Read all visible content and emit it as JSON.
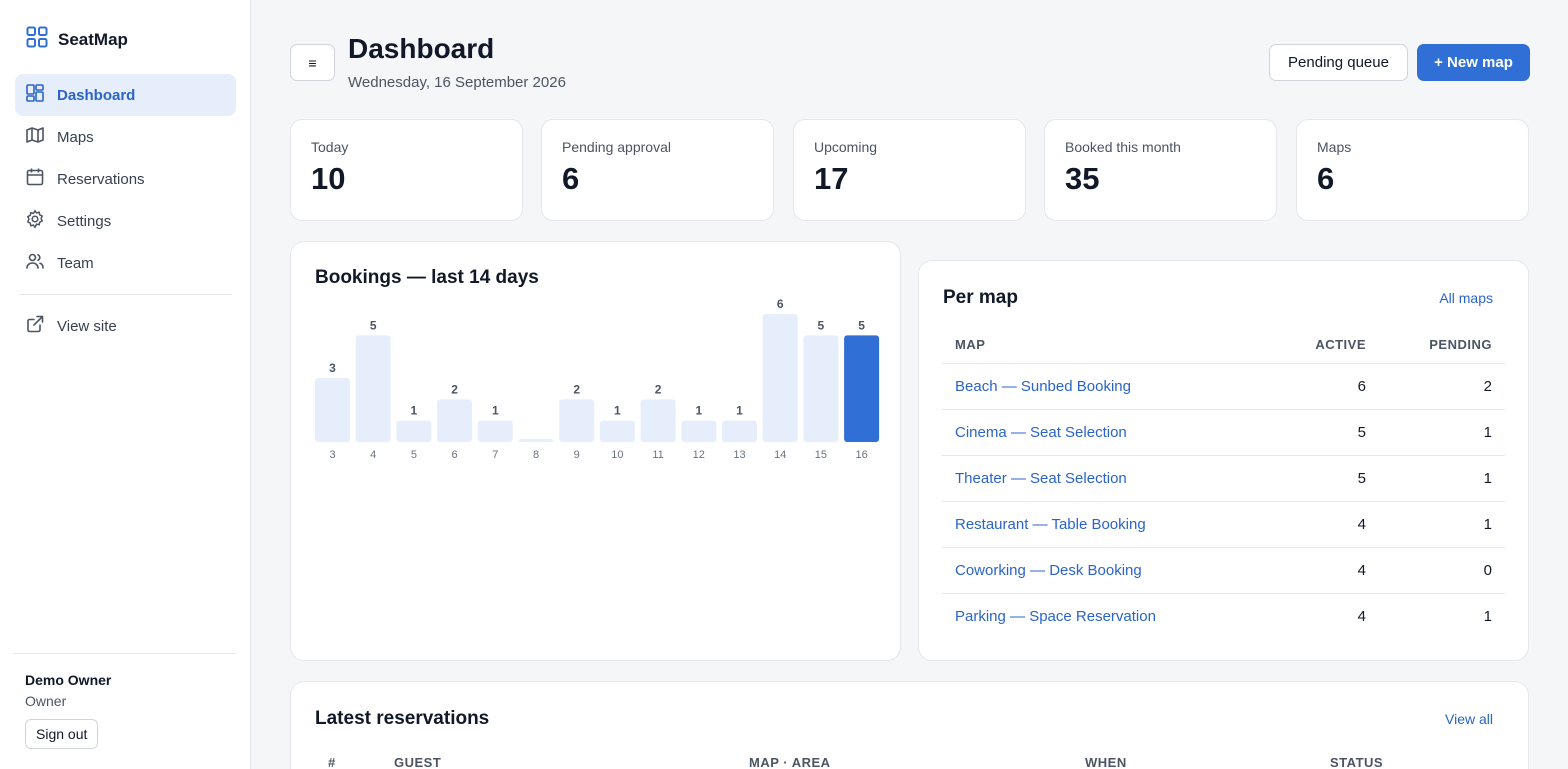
{
  "brand": {
    "name": "SeatMap"
  },
  "sidebar": {
    "items": [
      {
        "label": "Dashboard",
        "icon": "dashboard-icon",
        "active": true
      },
      {
        "label": "Maps",
        "icon": "map-icon",
        "active": false
      },
      {
        "label": "Reservations",
        "icon": "calendar-icon",
        "active": false
      },
      {
        "label": "Settings",
        "icon": "gear-icon",
        "active": false
      },
      {
        "label": "Team",
        "icon": "users-icon",
        "active": false
      }
    ],
    "view_site": "View site",
    "user": {
      "name": "Demo Owner",
      "role": "Owner",
      "sign_out": "Sign out"
    }
  },
  "header": {
    "menu_glyph": "≡",
    "title": "Dashboard",
    "date": "Wednesday, 16 September 2026",
    "pending_queue": "Pending queue",
    "new_map": "+ New map"
  },
  "stats": [
    {
      "label": "Today",
      "value": "10"
    },
    {
      "label": "Pending approval",
      "value": "6"
    },
    {
      "label": "Upcoming",
      "value": "17"
    },
    {
      "label": "Booked this month",
      "value": "35"
    },
    {
      "label": "Maps",
      "value": "6"
    }
  ],
  "bookings": {
    "title": "Bookings — last 14 days"
  },
  "chart_data": {
    "type": "bar",
    "title": "Bookings — last 14 days",
    "categories": [
      "3",
      "4",
      "5",
      "6",
      "7",
      "8",
      "9",
      "10",
      "11",
      "12",
      "13",
      "14",
      "15",
      "16"
    ],
    "values": [
      3,
      5,
      1,
      2,
      1,
      0,
      2,
      1,
      2,
      1,
      1,
      6,
      5,
      5
    ],
    "highlight_index": 13,
    "colors": {
      "bar": "#e7eefb",
      "highlight": "#2f6fd6"
    }
  },
  "per_map": {
    "title": "Per map",
    "link": "All maps",
    "columns": {
      "map": "MAP",
      "active": "ACTIVE",
      "pending": "PENDING"
    },
    "rows": [
      {
        "map": "Beach — Sunbed Booking",
        "active": "6",
        "pending": "2"
      },
      {
        "map": "Cinema — Seat Selection",
        "active": "5",
        "pending": "1"
      },
      {
        "map": "Theater — Seat Selection",
        "active": "5",
        "pending": "1"
      },
      {
        "map": "Restaurant — Table Booking",
        "active": "4",
        "pending": "1"
      },
      {
        "map": "Coworking — Desk Booking",
        "active": "4",
        "pending": "0"
      },
      {
        "map": "Parking — Space Reservation",
        "active": "4",
        "pending": "1"
      }
    ]
  },
  "latest": {
    "title": "Latest reservations",
    "link": "View all",
    "columns": {
      "num": "#",
      "guest": "GUEST",
      "map_area": "MAP · AREA",
      "when": "WHEN",
      "status": "STATUS"
    }
  },
  "colors": {
    "accent": "#2f6fd6",
    "link": "#2a64c9",
    "active_nav_bg": "#e7eefb"
  }
}
